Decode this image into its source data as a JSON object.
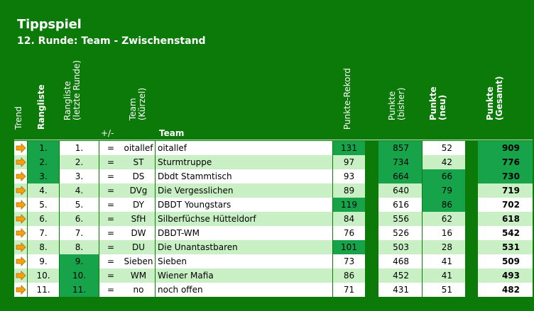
{
  "title": "Tippspiel",
  "subtitle": "12. Runde: Team - Zwischenstand",
  "headers": {
    "trend": "Trend",
    "rangliste": "Rangliste",
    "rangliste_letzte": "Rangliste\n(letzte Runde)",
    "plus_minus": "+/-",
    "team_kuerzel": "Team\n(Kürzel)",
    "team": "Team",
    "punkte_rekord": "Punkte-Rekord",
    "punkte_bisher": "Punkte\n(bisher)",
    "punkte_neu": "Punkte\n(neu)",
    "punkte_gesamt": "Punkte\n(Gesamt)"
  },
  "colors": {
    "row_white": "#ffffff",
    "row_light": "#c9f0c4",
    "highlight": "#16a34a",
    "arrow": "#f2a20c"
  },
  "rows": [
    {
      "trend": "right-arrow-icon",
      "rank": "1.",
      "last_rank": "1.",
      "change": "=",
      "short": "oitallef",
      "team": "oitallef",
      "record": "131",
      "before": "857",
      "new": "52",
      "total": "909",
      "hl": [
        "rank",
        "record",
        "before",
        "total"
      ]
    },
    {
      "trend": "right-arrow-icon",
      "rank": "2.",
      "last_rank": "2.",
      "change": "=",
      "short": "ST",
      "team": "Sturmtruppe",
      "record": "97",
      "before": "734",
      "new": "42",
      "total": "776",
      "hl": [
        "rank",
        "before",
        "total"
      ]
    },
    {
      "trend": "right-arrow-icon",
      "rank": "3.",
      "last_rank": "3.",
      "change": "=",
      "short": "DS",
      "team": "Dbdt Stammtisch",
      "record": "93",
      "before": "664",
      "new": "66",
      "total": "730",
      "hl": [
        "rank",
        "before",
        "new",
        "total"
      ]
    },
    {
      "trend": "right-arrow-icon",
      "rank": "4.",
      "last_rank": "4.",
      "change": "=",
      "short": "DVg",
      "team": "Die Vergesslichen",
      "record": "89",
      "before": "640",
      "new": "79",
      "total": "719",
      "hl": [
        "new"
      ]
    },
    {
      "trend": "right-arrow-icon",
      "rank": "5.",
      "last_rank": "5.",
      "change": "=",
      "short": "DY",
      "team": "DBDT Youngstars",
      "record": "119",
      "before": "616",
      "new": "86",
      "total": "702",
      "hl": [
        "record",
        "new"
      ]
    },
    {
      "trend": "right-arrow-icon",
      "rank": "6.",
      "last_rank": "6.",
      "change": "=",
      "short": "SfH",
      "team": "Silberfüchse Hütteldorf",
      "record": "84",
      "before": "556",
      "new": "62",
      "total": "618",
      "hl": []
    },
    {
      "trend": "right-arrow-icon",
      "rank": "7.",
      "last_rank": "7.",
      "change": "=",
      "short": "DW",
      "team": "DBDT-WM",
      "record": "76",
      "before": "526",
      "new": "16",
      "total": "542",
      "hl": []
    },
    {
      "trend": "right-arrow-icon",
      "rank": "8.",
      "last_rank": "8.",
      "change": "=",
      "short": "DU",
      "team": "Die Unantastbaren",
      "record": "101",
      "before": "503",
      "new": "28",
      "total": "531",
      "hl": [
        "record"
      ]
    },
    {
      "trend": "right-arrow-icon",
      "rank": "9.",
      "last_rank": "9.",
      "change": "=",
      "short": "Sieben",
      "team": "Sieben",
      "record": "73",
      "before": "468",
      "new": "41",
      "total": "509",
      "hl": [
        "last_rank"
      ]
    },
    {
      "trend": "right-arrow-icon",
      "rank": "10.",
      "last_rank": "10.",
      "change": "=",
      "short": "WM",
      "team": "Wiener Mafia",
      "record": "86",
      "before": "452",
      "new": "41",
      "total": "493",
      "hl": [
        "last_rank"
      ]
    },
    {
      "trend": "right-arrow-icon",
      "rank": "11.",
      "last_rank": "11.",
      "change": "=",
      "short": "no",
      "team": "noch offen",
      "record": "71",
      "before": "431",
      "new": "51",
      "total": "482",
      "hl": [
        "last_rank"
      ]
    }
  ]
}
